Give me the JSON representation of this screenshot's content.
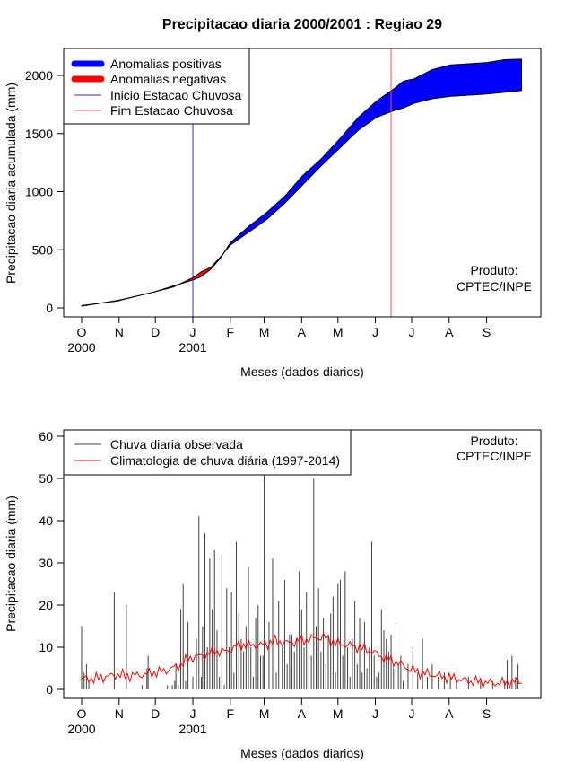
{
  "chart_data": [
    {
      "type": "area",
      "title": "Precipitacao diaria 2000/2001 : Regiao 29",
      "xlabel": "Meses (dados diarios)",
      "ylabel": "Precipitacao diaria acumulada (mm)",
      "ylim": [
        0,
        2200
      ],
      "yticks": [
        0,
        500,
        1000,
        1500,
        2000
      ],
      "month_ticks": [
        "O",
        "N",
        "D",
        "J",
        "F",
        "M",
        "A",
        "M",
        "J",
        "J",
        "A",
        "S"
      ],
      "year_labels": [
        {
          "label": "2000",
          "month_index": 0
        },
        {
          "label": "2001",
          "month_index": 3
        }
      ],
      "days": [
        0,
        15,
        30,
        45,
        61,
        76,
        92,
        99,
        107,
        115,
        123,
        138,
        153,
        168,
        183,
        198,
        214,
        229,
        244,
        259,
        266,
        275,
        290,
        305,
        320,
        335,
        350,
        364
      ],
      "observed": [
        15,
        40,
        60,
        100,
        140,
        190,
        240,
        270,
        335,
        430,
        560,
        700,
        820,
        960,
        1140,
        1280,
        1460,
        1640,
        1780,
        1890,
        1950,
        1970,
        2050,
        2090,
        2100,
        2110,
        2135,
        2140
      ],
      "climatology": [
        20,
        40,
        65,
        100,
        140,
        180,
        260,
        310,
        350,
        440,
        540,
        650,
        760,
        900,
        1060,
        1220,
        1380,
        1530,
        1640,
        1700,
        1720,
        1760,
        1800,
        1820,
        1830,
        1840,
        1855,
        1870
      ],
      "rainy_season_start_day": 92,
      "rainy_season_end_day": 256,
      "legend": [
        "Anomalias positivas",
        "Anomalias negativas",
        "Inicio Estacao Chuvosa",
        "Fim Estacao Chuvosa"
      ],
      "annotation": [
        "Produto:",
        "CPTEC/INPE"
      ],
      "colors": {
        "positive": "#0000ff",
        "negative": "#ff0000",
        "start": "#3030b0",
        "end": "#ff5050"
      }
    },
    {
      "type": "bar",
      "xlabel": "Meses (dados diarios)",
      "ylabel": "Precipitacao diaria (mm)",
      "ylim": [
        0,
        60
      ],
      "yticks": [
        0,
        10,
        20,
        30,
        40,
        50,
        60
      ],
      "month_ticks": [
        "O",
        "N",
        "D",
        "J",
        "F",
        "M",
        "A",
        "M",
        "J",
        "J",
        "A",
        "S"
      ],
      "year_labels": [
        {
          "label": "2000",
          "month_index": 0
        },
        {
          "label": "2001",
          "month_index": 3
        }
      ],
      "series": [
        {
          "name": "Chuva diaria observada",
          "type": "bar",
          "color": "#404040",
          "x": [
            0,
            2,
            4,
            6,
            27,
            37,
            50,
            54,
            55,
            71,
            75,
            77,
            78,
            80,
            82,
            84,
            86,
            88,
            92,
            95,
            97,
            99,
            100,
            102,
            104,
            106,
            108,
            110,
            112,
            114,
            116,
            118,
            120,
            122,
            124,
            126,
            128,
            130,
            132,
            134,
            136,
            138,
            140,
            142,
            144,
            146,
            148,
            150,
            151,
            155,
            158,
            161,
            163,
            166,
            168,
            170,
            172,
            174,
            176,
            178,
            180,
            182,
            184,
            186,
            188,
            190,
            192,
            194,
            196,
            198,
            200,
            202,
            204,
            206,
            208,
            210,
            212,
            214,
            216,
            218,
            220,
            222,
            224,
            226,
            228,
            230,
            232,
            234,
            236,
            238,
            240,
            242,
            244,
            246,
            248,
            250,
            252,
            254,
            256,
            258,
            260,
            262,
            264,
            266,
            270,
            274,
            278,
            282,
            286,
            290,
            295,
            300,
            305,
            310,
            320,
            330,
            340,
            350,
            352,
            356,
            359,
            361
          ],
          "values": [
            15,
            4,
            6,
            2,
            23,
            20,
            1,
            5,
            8,
            1,
            1,
            2,
            6,
            1,
            19,
            25,
            2,
            16,
            3,
            12,
            41,
            3,
            15,
            37,
            10,
            31,
            19,
            33,
            14,
            3,
            32,
            1,
            24,
            10,
            23,
            4,
            35,
            18,
            12,
            9,
            15,
            29,
            10,
            3,
            17,
            20,
            8,
            8,
            52,
            16,
            31,
            4,
            21,
            10,
            26,
            6,
            13,
            13,
            9,
            12,
            28,
            19,
            10,
            23,
            9,
            8,
            50,
            15,
            24,
            9,
            17,
            6,
            13,
            18,
            22,
            4,
            25,
            26,
            8,
            28,
            10,
            3,
            12,
            21,
            6,
            17,
            4,
            16,
            5,
            10,
            35,
            8,
            3,
            4,
            19,
            14,
            12,
            9,
            13,
            5,
            16,
            6,
            8,
            2,
            6,
            10,
            4,
            12,
            3,
            6,
            3,
            4,
            3,
            2,
            3,
            2,
            2,
            2,
            7,
            8,
            3,
            6
          ]
        },
        {
          "name": "Climatologia de chuva diária (1997-2014)",
          "type": "line",
          "color": "#ff0000",
          "x": [
            0,
            10,
            20,
            30,
            40,
            50,
            60,
            70,
            80,
            90,
            100,
            110,
            120,
            130,
            140,
            150,
            160,
            170,
            180,
            190,
            200,
            210,
            220,
            230,
            240,
            250,
            260,
            270,
            280,
            290,
            300,
            310,
            320,
            330,
            340,
            350,
            364
          ],
          "values": [
            2.5,
            2.5,
            3.0,
            3.5,
            3.2,
            3.5,
            4.0,
            4.5,
            5.5,
            7.5,
            8.0,
            9.0,
            9.0,
            10.5,
            10.5,
            10.5,
            11.5,
            11.0,
            11.5,
            12.0,
            12.5,
            11.0,
            10.5,
            10.0,
            9.0,
            7.5,
            6.5,
            5.0,
            4.0,
            3.5,
            3.0,
            2.5,
            2.0,
            1.8,
            1.5,
            1.5,
            2.0
          ]
        }
      ],
      "annotation": [
        "Produto:",
        "CPTEC/INPE"
      ]
    }
  ]
}
